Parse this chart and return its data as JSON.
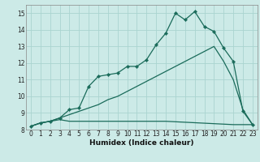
{
  "xlabel": "Humidex (Indice chaleur)",
  "bg_color": "#cceae7",
  "grid_color": "#aad4d0",
  "line_color": "#1a6b5a",
  "xlim": [
    -0.5,
    23.5
  ],
  "ylim": [
    8.0,
    15.5
  ],
  "xticks": [
    0,
    1,
    2,
    3,
    4,
    5,
    6,
    7,
    8,
    9,
    10,
    11,
    12,
    13,
    14,
    15,
    16,
    17,
    18,
    19,
    20,
    21,
    22,
    23
  ],
  "yticks": [
    8,
    9,
    10,
    11,
    12,
    13,
    14,
    15
  ],
  "line1_x": [
    0,
    1,
    2,
    3,
    4,
    5,
    14,
    21,
    22,
    23
  ],
  "line1_y": [
    8.2,
    8.4,
    8.5,
    8.6,
    8.5,
    8.5,
    8.5,
    8.3,
    8.3,
    8.3
  ],
  "line2_x": [
    0,
    1,
    2,
    3,
    4,
    5,
    6,
    7,
    8,
    9,
    10,
    11,
    12,
    13,
    14,
    15,
    16,
    17,
    18,
    19,
    20,
    21,
    22,
    23
  ],
  "line2_y": [
    8.2,
    8.4,
    8.5,
    8.7,
    8.9,
    9.1,
    9.3,
    9.5,
    9.8,
    10.0,
    10.3,
    10.6,
    10.9,
    11.2,
    11.5,
    11.8,
    12.1,
    12.4,
    12.7,
    13.0,
    12.1,
    11.0,
    9.2,
    8.3
  ],
  "line3_x": [
    0,
    1,
    2,
    3,
    4,
    5,
    6,
    7,
    8,
    9,
    10,
    11,
    12,
    13,
    14,
    15,
    16,
    17,
    18,
    19,
    20,
    21,
    22,
    23
  ],
  "line3_y": [
    8.2,
    8.4,
    8.5,
    8.7,
    9.2,
    9.3,
    10.6,
    11.2,
    11.3,
    11.4,
    11.8,
    11.8,
    12.2,
    13.1,
    13.8,
    15.0,
    14.6,
    15.1,
    14.2,
    13.9,
    12.9,
    12.1,
    9.1,
    8.3
  ]
}
